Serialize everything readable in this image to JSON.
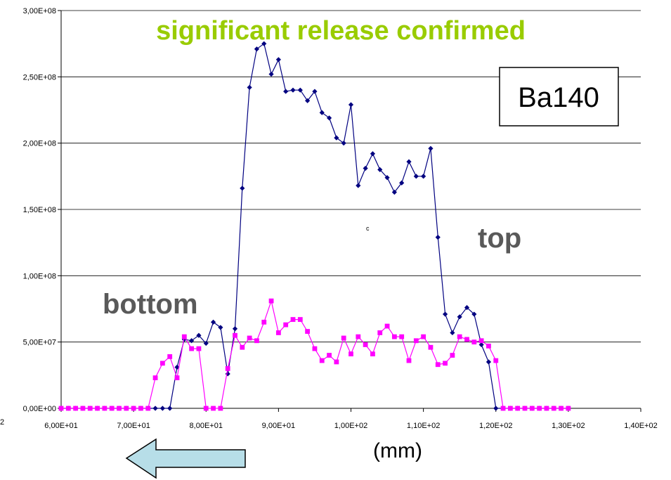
{
  "chart_data": {
    "type": "line",
    "title": "significant release confirmed",
    "title_color": "#99cc00",
    "xlabel": "(mm)",
    "ylabel": "",
    "xlim": [
      60,
      140
    ],
    "ylim": [
      0,
      300000000
    ],
    "x_ticks": [
      60,
      70,
      80,
      90,
      100,
      110,
      120,
      130,
      140
    ],
    "x_tick_labels": [
      "6,00E+01",
      "7,00E+01",
      "8,00E+01",
      "9,00E+01",
      "1,00E+02",
      "1,10E+02",
      "1,20E+02",
      "1,30E+02",
      "1,40E+02"
    ],
    "y_ticks": [
      0,
      50000000,
      100000000,
      150000000,
      200000000,
      250000000,
      300000000
    ],
    "y_tick_labels": [
      "0,00E+00",
      "5,00E+07",
      "1,00E+08",
      "1,50E+08",
      "2,00E+08",
      "2,50E+08",
      "3,00E+08"
    ],
    "grid": "horizontal",
    "legend": "",
    "annotations": {
      "isotope_box": "Ba140",
      "top_label": "top",
      "bottom_label": "bottom",
      "stray_c": "c",
      "stray_2": "2"
    },
    "series": [
      {
        "color": "#000080",
        "marker": "diamond",
        "x": [
          60,
          61,
          62,
          63,
          64,
          65,
          66,
          67,
          68,
          69,
          70,
          71,
          72,
          73,
          74,
          75,
          76,
          77,
          78,
          79,
          80,
          81,
          82,
          83,
          84,
          85,
          86,
          87,
          88,
          89,
          90,
          91,
          92,
          93,
          94,
          95,
          96,
          97,
          98,
          99,
          100,
          101,
          102,
          103,
          104,
          105,
          106,
          107,
          108,
          109,
          110,
          111,
          112,
          113,
          114,
          115,
          116,
          117,
          118,
          119,
          120,
          121,
          122,
          123,
          124,
          125,
          126,
          127,
          128,
          129,
          130
        ],
        "values": [
          0,
          0,
          0,
          0,
          0,
          0,
          0,
          0,
          0,
          0,
          0,
          0,
          0,
          0,
          0,
          0,
          31000000,
          52000000,
          51000000,
          55000000,
          49000000,
          65000000,
          61000000,
          26000000,
          60000000,
          166000000,
          242000000,
          271000000,
          275000000,
          252000000,
          263000000,
          239000000,
          240000000,
          240000000,
          232000000,
          239000000,
          223000000,
          219000000,
          204000000,
          200000000,
          229000000,
          168000000,
          181000000,
          192000000,
          180000000,
          174000000,
          163000000,
          170000000,
          186000000,
          175000000,
          175000000,
          196000000,
          129000000,
          71000000,
          57000000,
          69000000,
          76000000,
          71000000,
          48000000,
          35000000,
          0,
          0,
          0,
          0,
          0,
          0,
          0,
          0,
          0,
          0,
          0
        ]
      },
      {
        "color": "#ff00ff",
        "marker": "square",
        "x": [
          60,
          61,
          62,
          63,
          64,
          65,
          66,
          67,
          68,
          69,
          70,
          71,
          72,
          73,
          74,
          75,
          76,
          77,
          78,
          79,
          80,
          81,
          82,
          83,
          84,
          85,
          86,
          87,
          88,
          89,
          90,
          91,
          92,
          93,
          94,
          95,
          96,
          97,
          98,
          99,
          100,
          101,
          102,
          103,
          104,
          105,
          106,
          107,
          108,
          109,
          110,
          111,
          112,
          113,
          114,
          115,
          116,
          117,
          118,
          119,
          120,
          121,
          122,
          123,
          124,
          125,
          126,
          127,
          128,
          129,
          130
        ],
        "values": [
          0,
          0,
          0,
          0,
          0,
          0,
          0,
          0,
          0,
          0,
          0,
          0,
          0,
          23000000,
          34000000,
          39000000,
          23000000,
          54000000,
          45000000,
          45000000,
          0,
          0,
          0,
          30000000,
          55000000,
          46000000,
          53000000,
          51000000,
          65000000,
          81000000,
          57000000,
          63000000,
          67000000,
          67000000,
          58000000,
          45000000,
          36000000,
          40000000,
          35000000,
          53000000,
          41000000,
          54000000,
          48000000,
          41000000,
          57000000,
          62000000,
          54000000,
          54000000,
          36000000,
          51000000,
          54000000,
          46000000,
          33000000,
          34000000,
          40000000,
          54000000,
          52000000,
          50000000,
          51000000,
          47000000,
          36000000,
          0,
          0,
          0,
          0,
          0,
          0,
          0,
          0,
          0,
          0
        ]
      }
    ]
  },
  "arrow": {
    "fill": "#b7dee8",
    "stroke": "#000000",
    "direction": "left"
  }
}
